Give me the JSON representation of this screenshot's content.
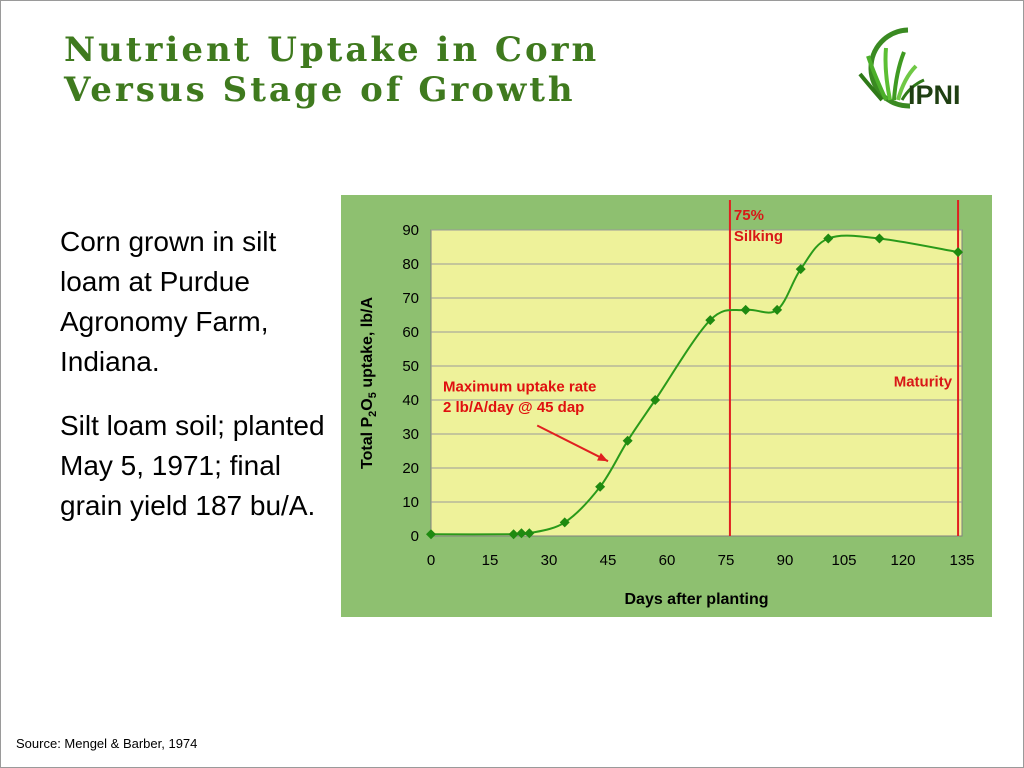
{
  "title": {
    "line1": "Nutrient Uptake in Corn",
    "line2": "Versus Stage of Growth"
  },
  "logo": {
    "text": "IPNI",
    "icon": "ipni-wheat-logo-icon"
  },
  "description": {
    "paragraph1": "Corn grown in silt loam at Purdue Agronomy Farm, Indiana.",
    "paragraph2": "Silt loam soil; planted May 5, 1971; final grain yield 187 bu/A."
  },
  "source": "Source: Mengel & Barber, 1974",
  "colors": {
    "title": "#3f7a1e",
    "chart_background": "#8ec070",
    "plot_area": "#eef29a",
    "series": "#2a9a1a",
    "marker": "#1f8a10",
    "reference_line": "#e02020",
    "annotation_text": "#e01010"
  },
  "chart_data": {
    "type": "line",
    "xlabel": "Days after planting",
    "ylabel": "Total P2O5 uptake, lb/A",
    "ylabel_parts": {
      "pre": "Total P",
      "sub1": "2",
      "mid": "O",
      "sub2": "5",
      "post": " uptake, lb/A"
    },
    "xlim": [
      0,
      135
    ],
    "ylim": [
      0,
      90
    ],
    "xticks": [
      0,
      15,
      30,
      45,
      60,
      75,
      90,
      105,
      120,
      135
    ],
    "yticks": [
      0,
      10,
      20,
      30,
      40,
      50,
      60,
      70,
      80,
      90
    ],
    "grid": "horizontal",
    "series": [
      {
        "x": [
          0,
          21,
          23,
          25,
          34,
          43,
          50,
          57,
          71,
          80,
          88,
          94,
          101,
          114,
          134
        ],
        "y": [
          0.5,
          0.5,
          0.8,
          0.8,
          4,
          14.5,
          28,
          40,
          63.5,
          66.5,
          66.5,
          78.5,
          87.5,
          87.5,
          83.5
        ]
      }
    ],
    "reference_lines": [
      {
        "x": 76,
        "label_line1": "75%",
        "label_line2": "Silking"
      },
      {
        "x": 134,
        "label": "Maturity"
      }
    ],
    "annotation": {
      "line1": "Maximum uptake rate",
      "line2": "2 lb/A/day @ 45 dap",
      "points_to": {
        "x": 45,
        "y": 22
      }
    }
  }
}
